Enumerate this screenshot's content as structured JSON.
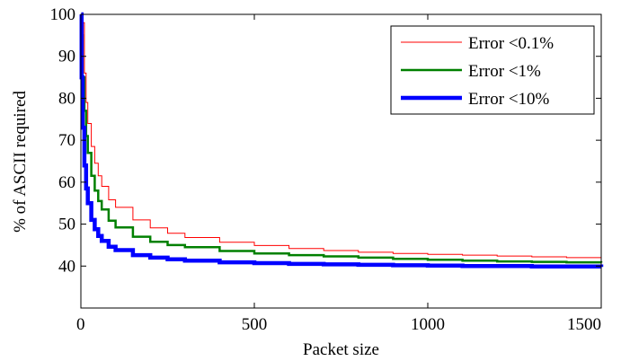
{
  "chart_data": {
    "type": "line",
    "xlabel": "Packet size",
    "ylabel": "% of ASCII required",
    "xlim": [
      0,
      1500
    ],
    "ylim": [
      30,
      100
    ],
    "xticks": [
      0,
      500,
      1000,
      1500
    ],
    "xtick_labels": [
      "0",
      "500",
      "1000",
      "1500"
    ],
    "yticks": [
      40,
      50,
      60,
      70,
      80,
      90,
      100
    ],
    "ytick_labels": [
      "40",
      "50",
      "60",
      "70",
      "80",
      "90",
      "100"
    ],
    "grid": false,
    "legend_position": "top-right",
    "series": [
      {
        "name": "Error <0.1%",
        "color": "#ff0000",
        "x": [
          1,
          2,
          5,
          10,
          15,
          20,
          30,
          40,
          50,
          60,
          80,
          100,
          150,
          200,
          250,
          300,
          400,
          500,
          600,
          700,
          800,
          900,
          1000,
          1100,
          1200,
          1300,
          1400,
          1500
        ],
        "y": [
          100,
          100,
          98,
          86,
          79,
          74,
          68.5,
          64.5,
          61.5,
          59,
          55.8,
          54,
          51,
          49.1,
          47.8,
          46.8,
          45.7,
          44.9,
          44.2,
          43.7,
          43.3,
          43,
          42.8,
          42.6,
          42.4,
          42.2,
          42,
          41.8
        ]
      },
      {
        "name": "Error <1%",
        "color": "#008000",
        "x": [
          1,
          2,
          5,
          10,
          15,
          20,
          30,
          40,
          50,
          60,
          80,
          100,
          150,
          200,
          250,
          300,
          400,
          500,
          600,
          700,
          800,
          900,
          1000,
          1100,
          1200,
          1300,
          1400,
          1500
        ],
        "y": [
          100,
          95,
          85,
          77,
          71,
          67,
          61.5,
          58,
          55.5,
          53.5,
          50.8,
          49.2,
          47,
          45.8,
          45,
          44.5,
          43.6,
          43,
          42.6,
          42.3,
          42,
          41.7,
          41.5,
          41.3,
          41.1,
          41,
          40.9,
          40.8
        ]
      },
      {
        "name": "Error <10%",
        "color": "#0000ff",
        "x": [
          1,
          2,
          5,
          10,
          15,
          20,
          30,
          40,
          50,
          60,
          80,
          100,
          150,
          200,
          250,
          300,
          400,
          500,
          600,
          700,
          800,
          900,
          1000,
          1100,
          1200,
          1300,
          1400,
          1500
        ],
        "y": [
          100,
          85,
          73,
          64,
          58.5,
          55,
          51,
          48.8,
          47.2,
          46,
          44.6,
          43.8,
          42.6,
          42,
          41.6,
          41.3,
          40.9,
          40.7,
          40.5,
          40.4,
          40.3,
          40.2,
          40.1,
          40,
          40,
          39.9,
          39.9,
          39.8
        ]
      }
    ]
  }
}
